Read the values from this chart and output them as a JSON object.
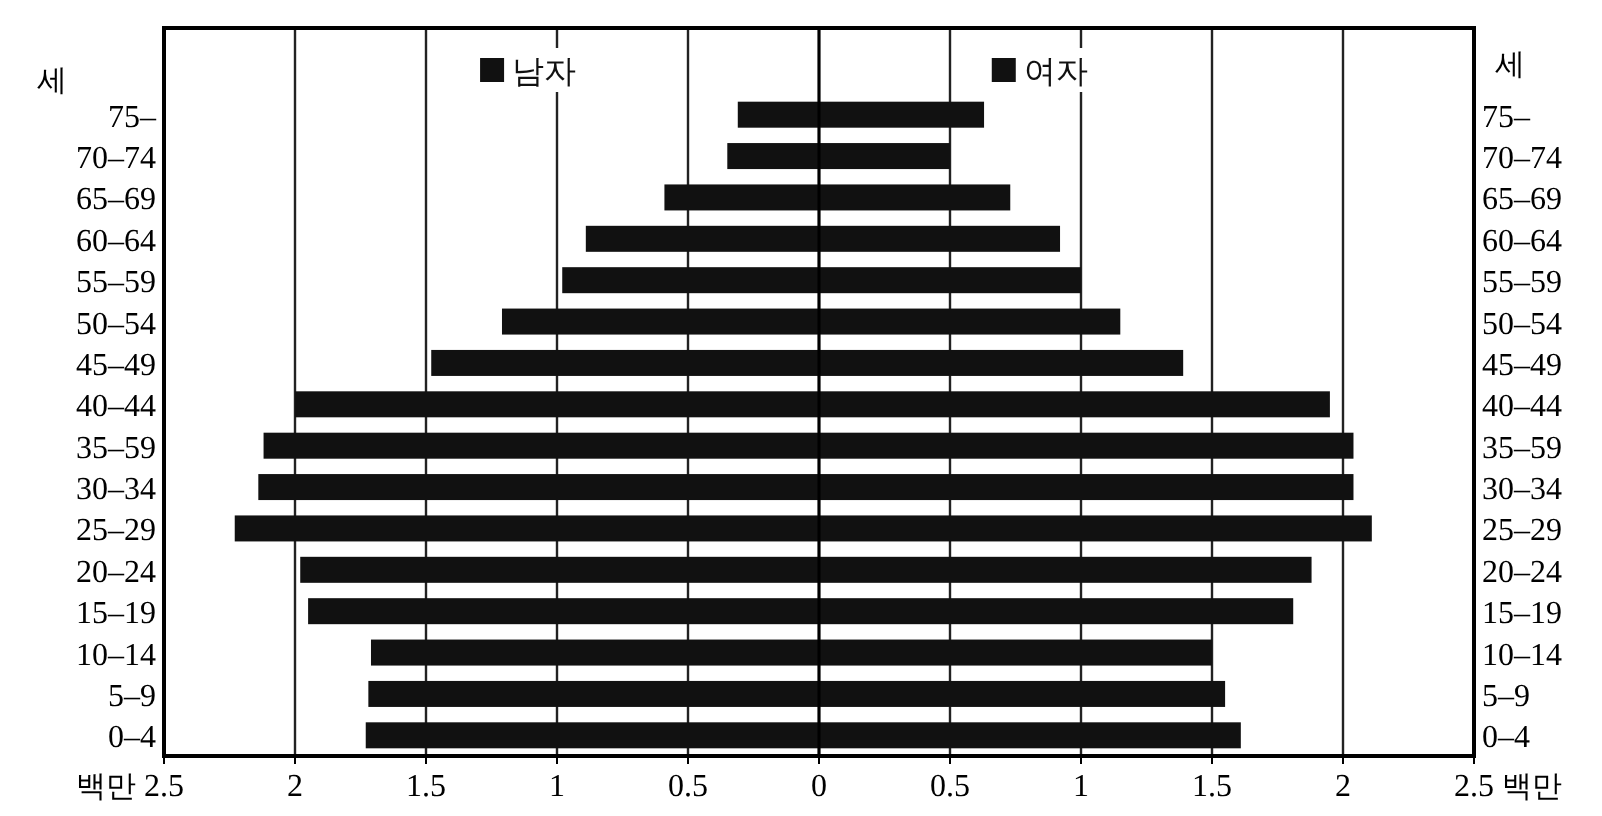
{
  "chart_data": {
    "type": "bar",
    "orientation": "horizontal",
    "stacked": true,
    "categories": [
      "75–",
      "70–74",
      "65–69",
      "60–64",
      "55–59",
      "50–54",
      "45–49",
      "40–44",
      "35–59",
      "30–34",
      "25–29",
      "20–24",
      "15–19",
      "10–14",
      "5–9",
      "0–4"
    ],
    "series": [
      {
        "name": "남자",
        "color": "#111111",
        "values": [
          -0.31,
          -0.35,
          -0.59,
          -0.89,
          -0.98,
          -1.21,
          -1.48,
          -2.0,
          -2.12,
          -2.14,
          -2.23,
          -1.98,
          -1.95,
          -1.71,
          -1.72,
          -1.73
        ]
      },
      {
        "name": "여자",
        "color": "#111111",
        "values": [
          0.63,
          0.5,
          0.73,
          0.92,
          1.0,
          1.15,
          1.39,
          1.95,
          2.04,
          2.04,
          2.11,
          1.88,
          1.81,
          1.5,
          1.55,
          1.61
        ]
      }
    ],
    "xlim": [
      -2.5,
      2.5
    ],
    "xticks": [
      {
        "value": -2.5,
        "label": "2.5"
      },
      {
        "value": -2,
        "label": "2"
      },
      {
        "value": -1.5,
        "label": "1.5"
      },
      {
        "value": -1,
        "label": "1"
      },
      {
        "value": -0.5,
        "label": "0.5"
      },
      0,
      0.5,
      1,
      1.5,
      2,
      2.5
    ],
    "xlabel": "백만",
    "ylabel": "세",
    "y2label": "세",
    "grid": "x",
    "legend": "top"
  }
}
